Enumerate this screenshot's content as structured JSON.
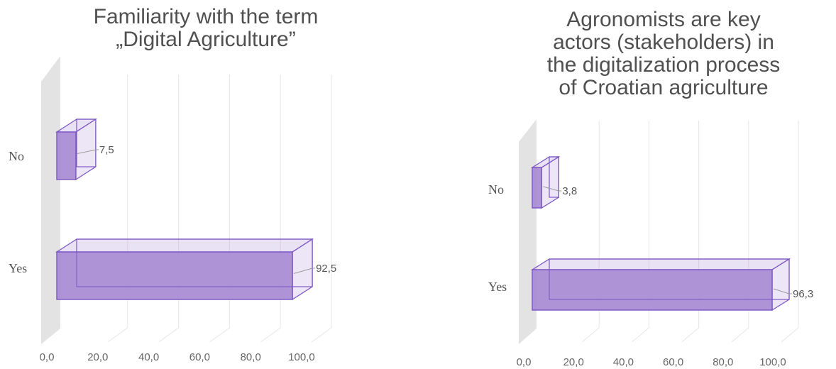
{
  "chart_data": [
    {
      "type": "bar",
      "orientation": "horizontal",
      "style": "3d",
      "title_lines": [
        "Familiarity with the term",
        "„Digital Agriculture”"
      ],
      "categories": [
        "No",
        "Yes"
      ],
      "values": [
        7.5,
        92.5
      ],
      "value_labels": [
        "7,5",
        "92,5"
      ],
      "xlim": [
        0,
        100
      ],
      "x_ticks": [
        "0,0",
        "20,0",
        "40,0",
        "60,0",
        "80,0",
        "100,0"
      ],
      "grid": true,
      "bar_color": "#a78bd4",
      "edge_color": "#7b55c2"
    },
    {
      "type": "bar",
      "orientation": "horizontal",
      "style": "3d",
      "title_lines": [
        "Agronomists are key",
        "actors (stakeholders) in",
        "the digitalization process",
        "of Croatian agriculture"
      ],
      "categories": [
        "No",
        "Yes"
      ],
      "values": [
        3.8,
        96.3
      ],
      "value_labels": [
        "3,8",
        "96,3"
      ],
      "xlim": [
        0,
        100
      ],
      "x_ticks": [
        "0,0",
        "20,0",
        "40,0",
        "60,0",
        "80,0",
        "100,0"
      ],
      "grid": true,
      "bar_color": "#a78bd4",
      "edge_color": "#7b55c2"
    }
  ]
}
